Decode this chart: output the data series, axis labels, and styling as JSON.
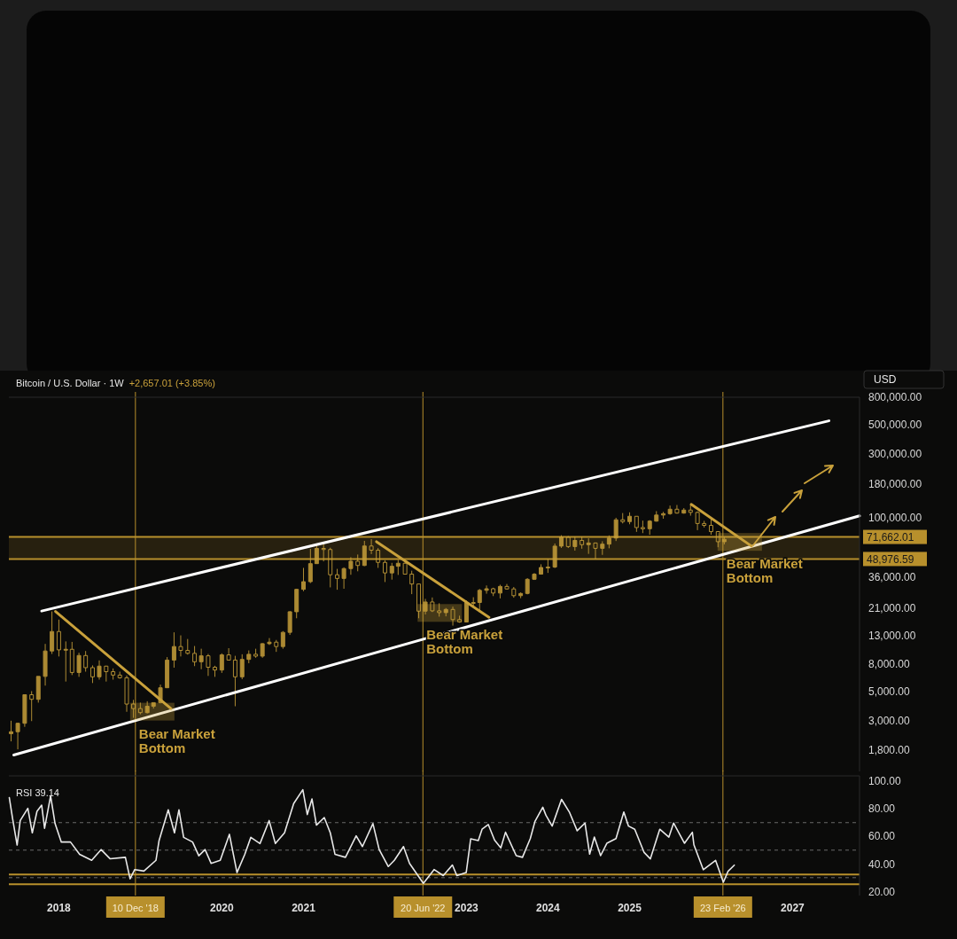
{
  "chart_data": [
    {
      "type": "candlestick",
      "title": "Bitcoin / U.S. Dollar · 1W",
      "subtitle": "+2,657.01 (+3.85%)",
      "ylabel": "USD",
      "log": true,
      "color": "#c9a13b",
      "tick_labels": "y",
      "xlim": [
        "2017-05-22",
        "2027-10-28"
      ],
      "ylim": [
        1250,
        800000
      ],
      "yticks": [
        {
          "value": 800000,
          "label": "800,000.00"
        },
        {
          "value": 500000,
          "label": "500,000.00"
        },
        {
          "value": 300000,
          "label": "300,000.00"
        },
        {
          "value": 180000,
          "label": "180,000.00"
        },
        {
          "value": 100000,
          "label": "100,000.00"
        },
        {
          "value": 36000,
          "label": "36,000.00"
        },
        {
          "value": 21000,
          "label": "21,000.00"
        },
        {
          "value": 13000,
          "label": "13,000.00"
        },
        {
          "value": 8000,
          "label": "8,000.00"
        },
        {
          "value": 5000,
          "label": "5,000.00"
        },
        {
          "value": 3000,
          "label": "3,000.00"
        },
        {
          "value": 1800,
          "label": "1,800.00"
        }
      ],
      "x": [
        "2017-06",
        "2017-07",
        "2017-08",
        "2017-09",
        "2017-10",
        "2017-11",
        "2017-12",
        "2018-01",
        "2018-02",
        "2018-03",
        "2018-04",
        "2018-05",
        "2018-06",
        "2018-07",
        "2018-08",
        "2018-09",
        "2018-10",
        "2018-11",
        "2018-12",
        "2019-01",
        "2019-02",
        "2019-03",
        "2019-04",
        "2019-05",
        "2019-06",
        "2019-07",
        "2019-08",
        "2019-09",
        "2019-10",
        "2019-11",
        "2019-12",
        "2020-01",
        "2020-02",
        "2020-03",
        "2020-04",
        "2020-05",
        "2020-06",
        "2020-07",
        "2020-08",
        "2020-09",
        "2020-10",
        "2020-11",
        "2020-12",
        "2021-01",
        "2021-02",
        "2021-03",
        "2021-04",
        "2021-05",
        "2021-06",
        "2021-07",
        "2021-08",
        "2021-09",
        "2021-10",
        "2021-11",
        "2021-12",
        "2022-01",
        "2022-02",
        "2022-03",
        "2022-04",
        "2022-05",
        "2022-06",
        "2022-07",
        "2022-08",
        "2022-09",
        "2022-10",
        "2022-11",
        "2022-12",
        "2023-01",
        "2023-02",
        "2023-03",
        "2023-04",
        "2023-05",
        "2023-06",
        "2023-07",
        "2023-08",
        "2023-09",
        "2023-10",
        "2023-11",
        "2023-12",
        "2024-01",
        "2024-02",
        "2024-03",
        "2024-04",
        "2024-05",
        "2024-06",
        "2024-07",
        "2024-08",
        "2024-09",
        "2024-10",
        "2024-11",
        "2024-12",
        "2025-01",
        "2025-02",
        "2025-03",
        "2025-04",
        "2025-05",
        "2025-06",
        "2025-07",
        "2025-08",
        "2025-09",
        "2025-10",
        "2025-11",
        "2025-12",
        "2026-01",
        "2026-02",
        "2026-03"
      ],
      "ohlc": [
        [
          2400,
          3000,
          2100,
          2480
        ],
        [
          2480,
          2900,
          1830,
          2870
        ],
        [
          2870,
          4700,
          2700,
          4700
        ],
        [
          4700,
          5000,
          2980,
          4340
        ],
        [
          4340,
          6450,
          4100,
          6450
        ],
        [
          6450,
          11300,
          5500,
          10000
        ],
        [
          10000,
          19800,
          9500,
          14000
        ],
        [
          14000,
          17200,
          9100,
          10200
        ],
        [
          10200,
          11800,
          5900,
          10300
        ],
        [
          10300,
          11700,
          6600,
          6900
        ],
        [
          6900,
          9700,
          6400,
          9250
        ],
        [
          9250,
          10000,
          7000,
          7500
        ],
        [
          7500,
          7800,
          5750,
          6400
        ],
        [
          6400,
          8500,
          6100,
          7700
        ],
        [
          7700,
          7750,
          5900,
          7000
        ],
        [
          7000,
          7400,
          6100,
          6600
        ],
        [
          6600,
          7000,
          6200,
          6300
        ],
        [
          6300,
          6550,
          3500,
          4000
        ],
        [
          4000,
          4300,
          3150,
          3700
        ],
        [
          3700,
          4100,
          3350,
          3450
        ],
        [
          3450,
          4200,
          3400,
          3850
        ],
        [
          3850,
          4100,
          3700,
          4100
        ],
        [
          4100,
          5600,
          4050,
          5300
        ],
        [
          5300,
          9000,
          5300,
          8550
        ],
        [
          8550,
          13800,
          7500,
          10800
        ],
        [
          10800,
          13100,
          9100,
          10100
        ],
        [
          10100,
          12300,
          9400,
          9600
        ],
        [
          9600,
          10900,
          7700,
          8300
        ],
        [
          8300,
          10400,
          7300,
          9200
        ],
        [
          9200,
          9500,
          6500,
          7550
        ],
        [
          7550,
          7750,
          6400,
          7200
        ],
        [
          7200,
          9600,
          6850,
          9350
        ],
        [
          9350,
          10500,
          8500,
          8550
        ],
        [
          8550,
          9200,
          3850,
          6400
        ],
        [
          6400,
          9450,
          6150,
          8650
        ],
        [
          8650,
          10100,
          8100,
          9450
        ],
        [
          9450,
          10400,
          8900,
          9150
        ],
        [
          9150,
          11450,
          8900,
          11350
        ],
        [
          11350,
          12500,
          11100,
          11650
        ],
        [
          11650,
          12100,
          9850,
          10800
        ],
        [
          10800,
          14100,
          10400,
          13800
        ],
        [
          13800,
          19900,
          13200,
          19700
        ],
        [
          19700,
          29300,
          17600,
          29000
        ],
        [
          29000,
          42000,
          28100,
          33100
        ],
        [
          33100,
          58300,
          32300,
          45200
        ],
        [
          45200,
          61700,
          45000,
          58800
        ],
        [
          58800,
          64800,
          47000,
          57700
        ],
        [
          57700,
          59500,
          30000,
          37300
        ],
        [
          37300,
          41300,
          28800,
          35000
        ],
        [
          35000,
          42400,
          29300,
          41500
        ],
        [
          41500,
          50500,
          37300,
          47100
        ],
        [
          47100,
          52900,
          39600,
          43800
        ],
        [
          43800,
          67000,
          43300,
          61300
        ],
        [
          61300,
          69000,
          53300,
          57000
        ],
        [
          57000,
          59100,
          42000,
          46200
        ],
        [
          46200,
          47900,
          32900,
          38500
        ],
        [
          38500,
          45800,
          34300,
          43200
        ],
        [
          43200,
          48200,
          37200,
          45500
        ],
        [
          45500,
          47400,
          37600,
          37700
        ],
        [
          37700,
          40000,
          26700,
          31800
        ],
        [
          31800,
          31900,
          17600,
          19900
        ],
        [
          19900,
          24600,
          18800,
          23300
        ],
        [
          23300,
          25200,
          19600,
          20000
        ],
        [
          20000,
          22800,
          18100,
          19400
        ],
        [
          19400,
          21000,
          18200,
          20500
        ],
        [
          20500,
          21500,
          15500,
          17200
        ],
        [
          17200,
          18400,
          16300,
          16500
        ],
        [
          16500,
          23900,
          16500,
          23100
        ],
        [
          23100,
          25300,
          21400,
          23100
        ],
        [
          23100,
          29200,
          19500,
          28500
        ],
        [
          28500,
          31000,
          26900,
          29300
        ],
        [
          29300,
          29800,
          25800,
          27200
        ],
        [
          27200,
          31400,
          24800,
          30500
        ],
        [
          30500,
          31800,
          28900,
          29200
        ],
        [
          29200,
          30200,
          25100,
          26000
        ],
        [
          26000,
          27500,
          24900,
          27000
        ],
        [
          27000,
          35200,
          26600,
          34500
        ],
        [
          34500,
          38400,
          34100,
          37700
        ],
        [
          37700,
          44700,
          37600,
          42300
        ],
        [
          42300,
          49000,
          38500,
          42600
        ],
        [
          42600,
          64000,
          41900,
          61200
        ],
        [
          61200,
          73800,
          59300,
          71300
        ],
        [
          71300,
          72800,
          59200,
          60700
        ],
        [
          60700,
          71900,
          56600,
          67500
        ],
        [
          67500,
          72000,
          58500,
          62700
        ],
        [
          62700,
          70000,
          53500,
          64600
        ],
        [
          64600,
          65000,
          49000,
          58900
        ],
        [
          58900,
          66500,
          52600,
          63300
        ],
        [
          63300,
          73600,
          58900,
          70300
        ],
        [
          70300,
          99800,
          66800,
          96400
        ],
        [
          96400,
          108300,
          90500,
          93400
        ],
        [
          93400,
          109600,
          89200,
          102400
        ],
        [
          102400,
          102500,
          78200,
          84300
        ],
        [
          84300,
          95000,
          76600,
          82500
        ],
        [
          82500,
          95800,
          74400,
          94200
        ],
        [
          94200,
          111900,
          93300,
          104600
        ],
        [
          104600,
          110500,
          98200,
          107100
        ],
        [
          107100,
          123200,
          105100,
          115700
        ],
        [
          115700,
          124400,
          107300,
          108200
        ],
        [
          108200,
          117900,
          107200,
          114000
        ],
        [
          114000,
          126200,
          103500,
          109500
        ],
        [
          109500,
          111200,
          80600,
          90400
        ],
        [
          90400,
          94600,
          84400,
          87500
        ],
        [
          87500,
          97900,
          74500,
          78600
        ],
        [
          78600,
          79300,
          60000,
          66000
        ],
        [
          66000,
          71700,
          63000,
          68800
        ]
      ],
      "series": [
        {
          "type": "line",
          "color": "#ffffff",
          "x": [
            "2017-10-16",
            "2027-06-13"
          ],
          "values": [
            19950,
            532000
          ]
        },
        {
          "type": "line",
          "color": "#ffffff",
          "x": [
            "2017-06-13",
            "2027-10-28"
          ],
          "values": [
            1660,
            103100
          ]
        },
        {
          "type": "line",
          "color": "#c9a13b",
          "x": [
            "2017-12-17",
            "2019-05-18"
          ],
          "values": [
            19800,
            3700
          ]
        },
        {
          "type": "line",
          "color": "#c9a13b",
          "x": [
            "2021-11-24",
            "2023-04-12"
          ],
          "values": [
            66000,
            17900
          ]
        },
        {
          "type": "line",
          "color": "#c9a13b",
          "x": [
            "2025-10-04",
            "2026-07-01"
          ],
          "values": [
            125900,
            61200
          ]
        }
      ],
      "ref_lines": [
        {
          "axis": "x",
          "value": "2018-12-10",
          "color": "#b8902c"
        },
        {
          "axis": "x",
          "value": "2022-06-20",
          "color": "#b8902c"
        },
        {
          "axis": "x",
          "value": "2026-02-23",
          "color": "#b8902c"
        },
        {
          "axis": "y",
          "value": 71662.01,
          "label": "71,662.01",
          "color": "#b8902c"
        },
        {
          "axis": "y",
          "value": 48976.59,
          "label": "48,976.59",
          "color": "#b8902c"
        }
      ],
      "bands": [
        {
          "axis": "y",
          "from": 48976.59,
          "to": 71662.01,
          "color": "#3a2f12"
        }
      ],
      "annotations": [
        {
          "text": "Bear Market Bottom",
          "x": "2018-12-10",
          "y": 3200
        },
        {
          "text": "Bear Market Bottom",
          "x": "2022-06-20",
          "y": 17600
        },
        {
          "text": "Bear Market Bottom",
          "x": "2026-02-23",
          "y": 60000
        }
      ]
    },
    {
      "type": "line",
      "title": "RSI 39.14",
      "color": "#e8e8e8",
      "xlim": [
        "2017-05-22",
        "2027-10-28"
      ],
      "xticks": [
        {
          "value": "2018-01-01",
          "label": "2018"
        },
        {
          "value": "2020-01-01",
          "label": "2020"
        },
        {
          "value": "2021-01-01",
          "label": "2021"
        },
        {
          "value": "2023-01-01",
          "label": "2023"
        },
        {
          "value": "2024-01-01",
          "label": "2024"
        },
        {
          "value": "2025-01-01",
          "label": "2025"
        },
        {
          "value": "2027-01-01",
          "label": "2027"
        }
      ],
      "ylim": [
        17,
        104
      ],
      "yticks": [
        {
          "value": 20,
          "label": "20.00"
        },
        {
          "value": 40,
          "label": "40.00"
        },
        {
          "value": 60,
          "label": "60.00"
        },
        {
          "value": 80,
          "label": "80.00"
        },
        {
          "value": 100,
          "label": "100.00"
        }
      ],
      "x": [
        "2017-05-24",
        "2017-06-08",
        "2017-06-28",
        "2017-07-12",
        "2017-08-15",
        "2017-09-04",
        "2017-09-25",
        "2017-10-16",
        "2017-10-29",
        "2017-11-25",
        "2017-12-15",
        "2018-01-12",
        "2018-02-22",
        "2018-04-04",
        "2018-05-28",
        "2018-07-09",
        "2018-08-19",
        "2018-10-26",
        "2018-11-16",
        "2018-12-07",
        "2019-01-17",
        "2019-03-12",
        "2019-03-26",
        "2019-05-06",
        "2019-06-03",
        "2019-06-23",
        "2019-07-14",
        "2019-08-23",
        "2019-09-20",
        "2019-10-18",
        "2019-11-14",
        "2019-12-25",
        "2020-02-04",
        "2020-03-09",
        "2020-04-13",
        "2020-05-10",
        "2020-06-20",
        "2020-07-31",
        "2020-08-28",
        "2020-10-08",
        "2020-11-18",
        "2020-12-29",
        "2021-01-18",
        "2021-02-08",
        "2021-02-28",
        "2021-04-04",
        "2021-05-01",
        "2021-05-22",
        "2021-07-08",
        "2021-08-25",
        "2021-09-22",
        "2021-11-08",
        "2021-12-06",
        "2022-01-16",
        "2022-02-12",
        "2022-03-25",
        "2022-04-21",
        "2022-06-22",
        "2022-08-09",
        "2022-09-19",
        "2022-10-30",
        "2022-11-19",
        "2022-12-31",
        "2023-01-20",
        "2023-02-23",
        "2023-03-12",
        "2023-04-09",
        "2023-05-07",
        "2023-06-04",
        "2023-06-25",
        "2023-08-12",
        "2023-09-09",
        "2023-10-14",
        "2023-11-04",
        "2023-12-09",
        "2023-12-23",
        "2024-01-20",
        "2024-03-02",
        "2024-04-06",
        "2024-05-11",
        "2024-06-15",
        "2024-07-06",
        "2024-07-27",
        "2024-08-24",
        "2024-09-21",
        "2024-11-01",
        "2024-12-06",
        "2024-12-27",
        "2025-01-24",
        "2025-03-07",
        "2025-04-04",
        "2025-05-16",
        "2025-06-26",
        "2025-07-17",
        "2025-09-04",
        "2025-10-09",
        "2025-10-16",
        "2025-11-27",
        "2026-01-21",
        "2026-02-25",
        "2026-03-18",
        "2026-04-15"
      ],
      "values": [
        88.2,
        72.6,
        53.7,
        71.5,
        80.4,
        62.6,
        78.2,
        82.7,
        65.9,
        89.4,
        69.3,
        55.9,
        55.9,
        47.0,
        42.6,
        50.4,
        43.7,
        44.8,
        29.2,
        35.9,
        34.8,
        42.6,
        57.0,
        79.3,
        62.6,
        79.3,
        59.3,
        55.9,
        45.9,
        50.4,
        40.4,
        42.6,
        61.5,
        33.7,
        47.0,
        59.3,
        54.8,
        71.5,
        54.8,
        62.6,
        83.9,
        93.9,
        75.9,
        87.2,
        68.2,
        73.7,
        62.6,
        47.0,
        44.8,
        60.4,
        52.6,
        69.3,
        50.4,
        38.1,
        42.6,
        52.6,
        40.4,
        25.9,
        35.9,
        31.5,
        39.2,
        31.5,
        33.7,
        58.2,
        57.0,
        65.2,
        68.6,
        57.3,
        51.6,
        63.0,
        46.0,
        44.8,
        58.4,
        70.9,
        81.2,
        75.4,
        67.5,
        86.9,
        77.7,
        64.1,
        69.7,
        47.1,
        59.5,
        46.0,
        55.0,
        58.4,
        77.7,
        67.5,
        65.2,
        48.3,
        43.7,
        65.2,
        59.5,
        69.7,
        55.0,
        63.0,
        53.9,
        35.8,
        42.6,
        26.7,
        34.6,
        39.1
      ],
      "ref_lines": [
        {
          "axis": "y",
          "value": 70,
          "color": "#6a6a6a",
          "line_style": "dashed"
        },
        {
          "axis": "y",
          "value": 50,
          "color": "#6a6a6a",
          "line_style": "dashed"
        },
        {
          "axis": "y",
          "value": 30,
          "color": "#6a6a6a",
          "line_style": "dashed"
        },
        {
          "axis": "y",
          "value": 32.3,
          "color": "#b8902c"
        },
        {
          "axis": "y",
          "value": 25.2,
          "color": "#b8902c"
        },
        {
          "axis": "x",
          "value": "2018-12-10",
          "label": "10 Dec '18",
          "color": "#b8902c"
        },
        {
          "axis": "x",
          "value": "2022-06-20",
          "label": "20 Jun '22",
          "color": "#b8902c"
        },
        {
          "axis": "x",
          "value": "2026-02-23",
          "label": "23 Feb '26",
          "color": "#b8902c"
        }
      ]
    }
  ]
}
